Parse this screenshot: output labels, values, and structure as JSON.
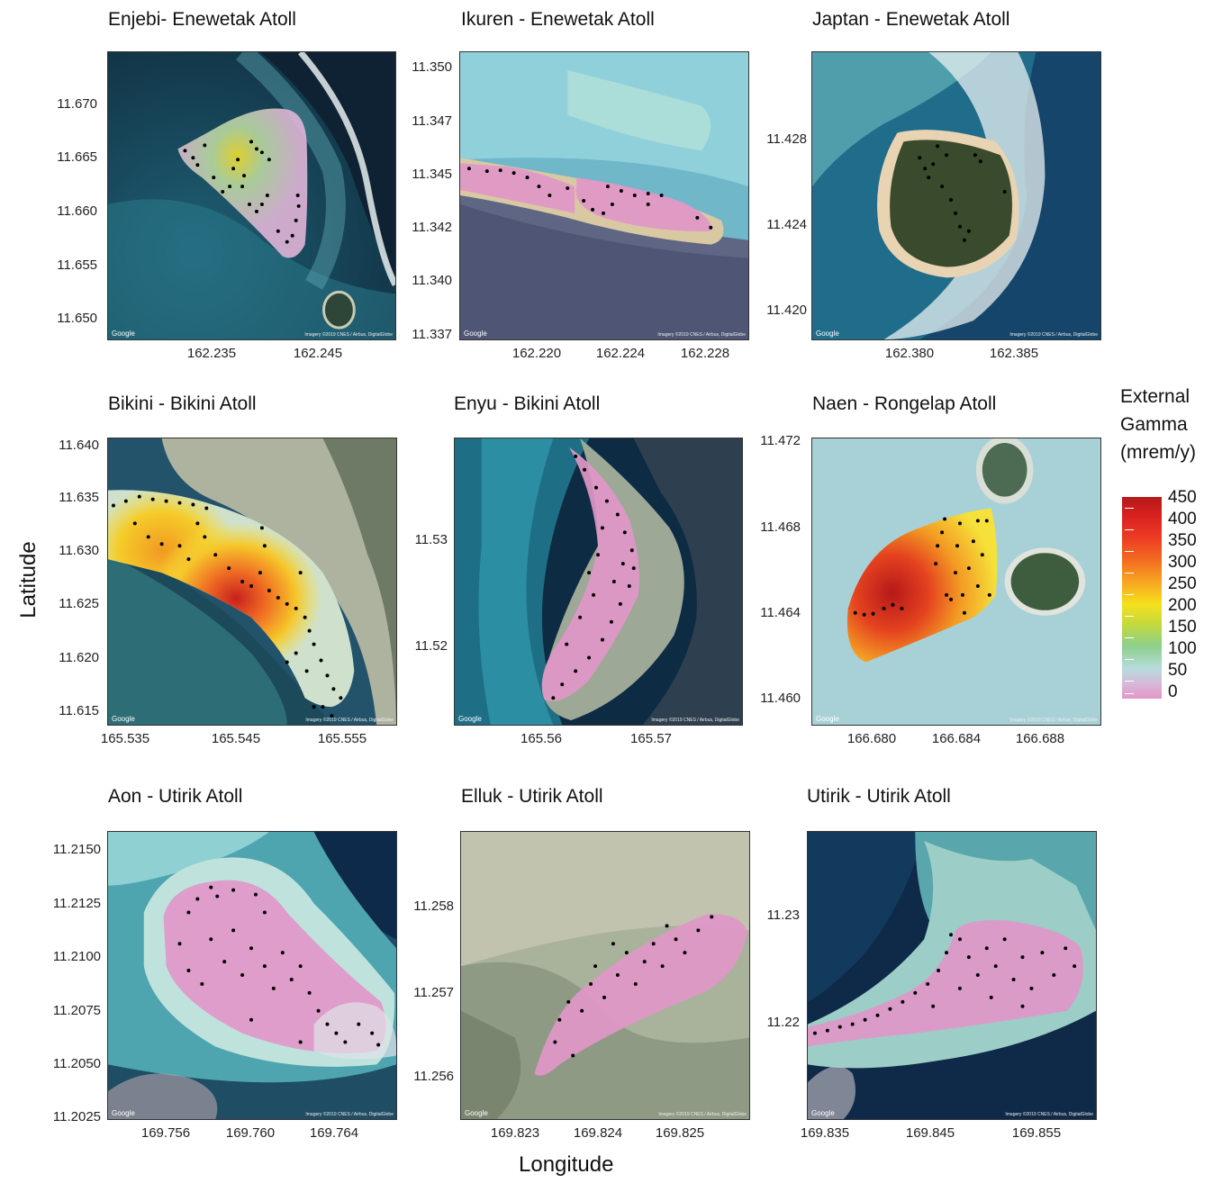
{
  "axis": {
    "x_title": "Longitude",
    "y_title": "Latitude"
  },
  "legend": {
    "title_lines": [
      "External",
      "Gamma",
      "(mrem/y)"
    ],
    "labels": [
      "450",
      "400",
      "350",
      "300",
      "250",
      "200",
      "150",
      "100",
      "50",
      "0"
    ],
    "colors": [
      "#b5191a",
      "#d8201f",
      "#ec3b24",
      "#f26a21",
      "#f7a521",
      "#f7e01b",
      "#c3da3d",
      "#8dcf8d",
      "#b6dcdc",
      "#e397c7"
    ]
  },
  "attribution": {
    "google": "Google",
    "credit": "Imagery ©2019 CNES / Airbus, DigitalGlobe"
  },
  "panels": [
    {
      "title": "Enjebi- Enewetak Atoll",
      "yticks": [
        "11.670",
        "11.665",
        "11.660",
        "11.655",
        "11.650"
      ],
      "xticks": [
        "162.235",
        "162.245"
      ]
    },
    {
      "title": "Ikuren - Enewetak Atoll",
      "yticks": [
        "11.350",
        "11.347",
        "11.345",
        "11.342",
        "11.340",
        "11.337"
      ],
      "xticks": [
        "162.220",
        "162.224",
        "162.228"
      ]
    },
    {
      "title": "Japtan - Enewetak Atoll",
      "yticks": [
        "11.428",
        "11.424",
        "11.420"
      ],
      "xticks": [
        "162.380",
        "162.385"
      ]
    },
    {
      "title": "Bikini - Bikini Atoll",
      "yticks": [
        "11.640",
        "11.635",
        "11.630",
        "11.625",
        "11.620",
        "11.615"
      ],
      "xticks": [
        "165.535",
        "165.545",
        "165.555"
      ]
    },
    {
      "title": "Enyu - Bikini Atoll",
      "yticks": [
        "11.53",
        "11.52"
      ],
      "xticks": [
        "165.56",
        "165.57"
      ]
    },
    {
      "title": "Naen - Rongelap Atoll",
      "yticks": [
        "11.472",
        "11.468",
        "11.464",
        "11.460"
      ],
      "xticks": [
        "166.680",
        "166.684",
        "166.688"
      ]
    },
    {
      "title": "Aon - Utirik Atoll",
      "yticks": [
        "11.2150",
        "11.2125",
        "11.2100",
        "11.2075",
        "11.2050",
        "11.2025"
      ],
      "xticks": [
        "169.756",
        "169.760",
        "169.764"
      ]
    },
    {
      "title": "Elluk - Utirik Atoll",
      "yticks": [
        "11.258",
        "11.257",
        "11.256"
      ],
      "xticks": [
        "169.823",
        "169.824",
        "169.825"
      ]
    },
    {
      "title": "Utirik - Utirik Atoll",
      "yticks": [
        "11.23",
        "11.22"
      ],
      "xticks": [
        "169.835",
        "169.845",
        "169.855"
      ]
    }
  ]
}
